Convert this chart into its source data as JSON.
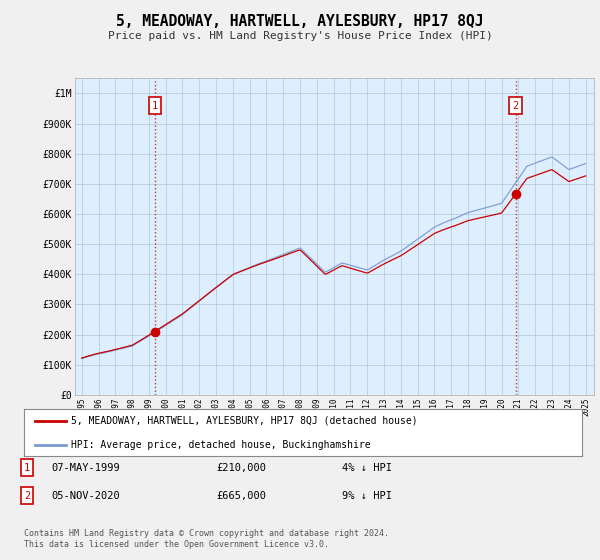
{
  "title": "5, MEADOWAY, HARTWELL, AYLESBURY, HP17 8QJ",
  "subtitle": "Price paid vs. HM Land Registry's House Price Index (HPI)",
  "property_label": "5, MEADOWAY, HARTWELL, AYLESBURY, HP17 8QJ (detached house)",
  "hpi_label": "HPI: Average price, detached house, Buckinghamshire",
  "footer": "Contains HM Land Registry data © Crown copyright and database right 2024.\nThis data is licensed under the Open Government Licence v3.0.",
  "annotation1": {
    "num": "1",
    "date": "07-MAY-1999",
    "price": "£210,000",
    "change": "4% ↓ HPI"
  },
  "annotation2": {
    "num": "2",
    "date": "05-NOV-2020",
    "price": "£665,000",
    "change": "9% ↓ HPI"
  },
  "ylim": [
    0,
    1050000
  ],
  "yticks": [
    0,
    100000,
    200000,
    300000,
    400000,
    500000,
    600000,
    700000,
    800000,
    900000,
    1000000
  ],
  "ytick_labels": [
    "£0",
    "£100K",
    "£200K",
    "£300K",
    "£400K",
    "£500K",
    "£600K",
    "£700K",
    "£800K",
    "£900K",
    "£1M"
  ],
  "background_color": "#f0f0f0",
  "plot_bg_color": "#ddeeff",
  "grid_color": "#bbccdd",
  "property_line_color": "#cc0000",
  "hpi_line_color": "#7799cc",
  "marker_color": "#cc0000",
  "vline_color": "#cc0000",
  "annotation_box_color": "#cc0000",
  "sale1_year": 1999.35,
  "sale1_price": 210000,
  "sale2_year": 2020.84,
  "sale2_price": 665000
}
